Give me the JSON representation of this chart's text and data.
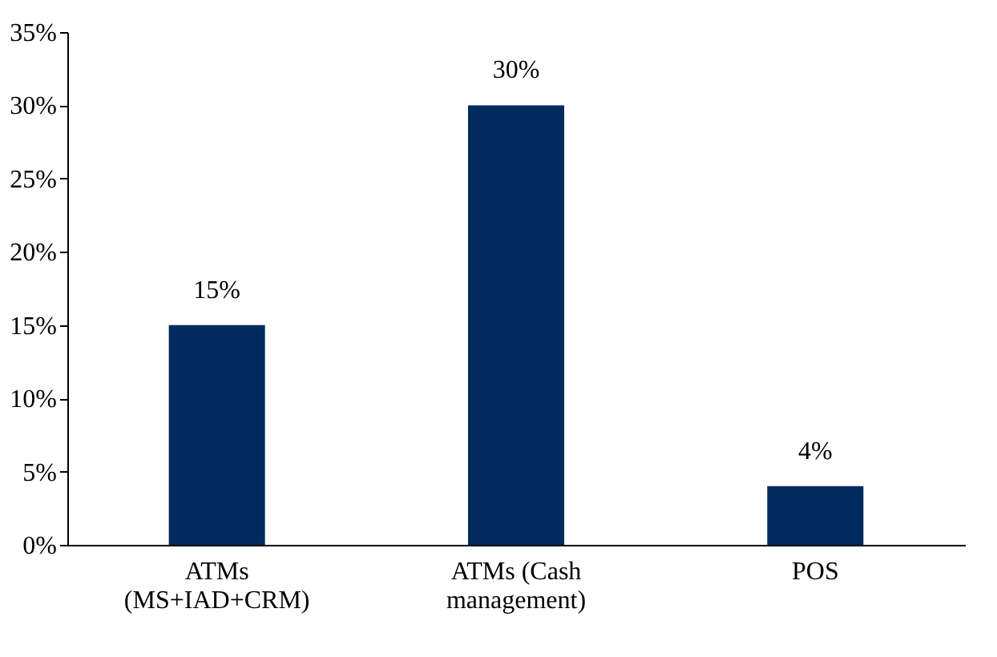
{
  "chart_data": {
    "type": "bar",
    "categories": [
      "ATMs (MS+IAD+CRM)",
      "ATMs (Cash management)",
      "POS"
    ],
    "values": [
      15,
      30,
      4
    ],
    "color": "#002b5c",
    "data_labels": true,
    "value_labels": [
      "15%",
      "30%",
      "4%"
    ],
    "ylim": [
      0,
      35
    ],
    "yticks": [
      {
        "value": 0,
        "label": "0%"
      },
      {
        "value": 5,
        "label": "5%"
      },
      {
        "value": 10,
        "label": "10%"
      },
      {
        "value": 15,
        "label": "15%"
      },
      {
        "value": 20,
        "label": "20%"
      },
      {
        "value": 25,
        "label": "25%"
      },
      {
        "value": 30,
        "label": "30%"
      },
      {
        "value": 35,
        "label": "35%"
      }
    ],
    "grid": false
  }
}
